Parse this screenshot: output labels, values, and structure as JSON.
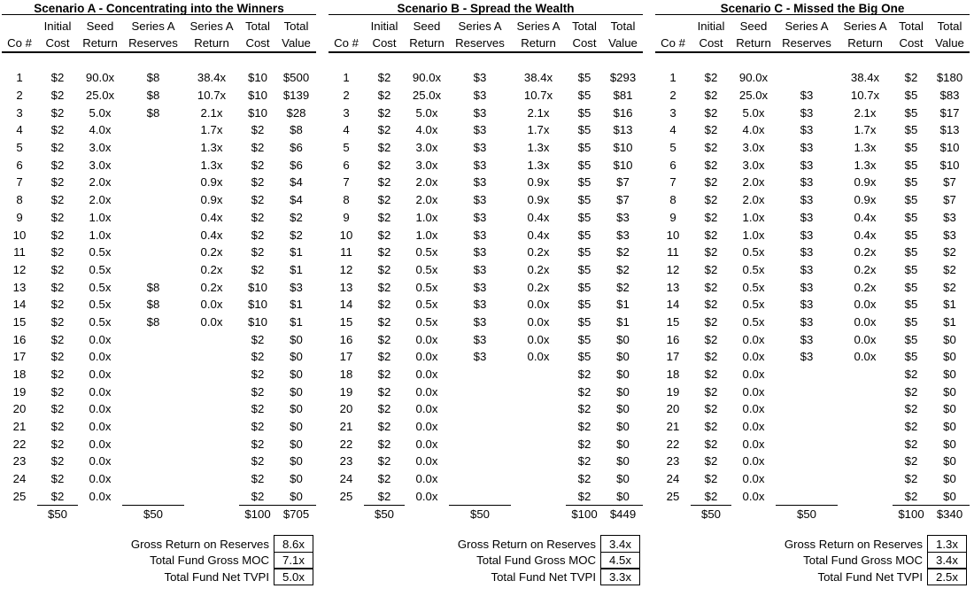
{
  "page": {
    "background_color": "#ffffff",
    "text_color": "#000000"
  },
  "columns": [
    [
      "",
      "Co #"
    ],
    [
      "Initial",
      "Cost"
    ],
    [
      "Seed",
      "Return"
    ],
    [
      "Series A",
      "Reserves"
    ],
    [
      "Series A",
      "Return"
    ],
    [
      "Total",
      "Cost"
    ],
    [
      "Total",
      "Value"
    ]
  ],
  "summary_labels": [
    "Gross Return on Reserves",
    "Total Fund Gross MOC",
    "Total Fund Net TVPI"
  ],
  "scenarios": [
    {
      "title": "Scenario A - Concentrating into the Winners",
      "rows": [
        [
          "1",
          "$2",
          "90.0x",
          "$8",
          "38.4x",
          "$10",
          "$500"
        ],
        [
          "2",
          "$2",
          "25.0x",
          "$8",
          "10.7x",
          "$10",
          "$139"
        ],
        [
          "3",
          "$2",
          "5.0x",
          "$8",
          "2.1x",
          "$10",
          "$28"
        ],
        [
          "4",
          "$2",
          "4.0x",
          "",
          "1.7x",
          "$2",
          "$8"
        ],
        [
          "5",
          "$2",
          "3.0x",
          "",
          "1.3x",
          "$2",
          "$6"
        ],
        [
          "6",
          "$2",
          "3.0x",
          "",
          "1.3x",
          "$2",
          "$6"
        ],
        [
          "7",
          "$2",
          "2.0x",
          "",
          "0.9x",
          "$2",
          "$4"
        ],
        [
          "8",
          "$2",
          "2.0x",
          "",
          "0.9x",
          "$2",
          "$4"
        ],
        [
          "9",
          "$2",
          "1.0x",
          "",
          "0.4x",
          "$2",
          "$2"
        ],
        [
          "10",
          "$2",
          "1.0x",
          "",
          "0.4x",
          "$2",
          "$2"
        ],
        [
          "11",
          "$2",
          "0.5x",
          "",
          "0.2x",
          "$2",
          "$1"
        ],
        [
          "12",
          "$2",
          "0.5x",
          "",
          "0.2x",
          "$2",
          "$1"
        ],
        [
          "13",
          "$2",
          "0.5x",
          "$8",
          "0.2x",
          "$10",
          "$3"
        ],
        [
          "14",
          "$2",
          "0.5x",
          "$8",
          "0.0x",
          "$10",
          "$1"
        ],
        [
          "15",
          "$2",
          "0.5x",
          "$8",
          "0.0x",
          "$10",
          "$1"
        ],
        [
          "16",
          "$2",
          "0.0x",
          "",
          "",
          "$2",
          "$0"
        ],
        [
          "17",
          "$2",
          "0.0x",
          "",
          "",
          "$2",
          "$0"
        ],
        [
          "18",
          "$2",
          "0.0x",
          "",
          "",
          "$2",
          "$0"
        ],
        [
          "19",
          "$2",
          "0.0x",
          "",
          "",
          "$2",
          "$0"
        ],
        [
          "20",
          "$2",
          "0.0x",
          "",
          "",
          "$2",
          "$0"
        ],
        [
          "21",
          "$2",
          "0.0x",
          "",
          "",
          "$2",
          "$0"
        ],
        [
          "22",
          "$2",
          "0.0x",
          "",
          "",
          "$2",
          "$0"
        ],
        [
          "23",
          "$2",
          "0.0x",
          "",
          "",
          "$2",
          "$0"
        ],
        [
          "24",
          "$2",
          "0.0x",
          "",
          "",
          "$2",
          "$0"
        ],
        [
          "25",
          "$2",
          "0.0x",
          "",
          "",
          "$2",
          "$0"
        ]
      ],
      "totals": [
        "",
        "$50",
        "",
        "$50",
        "",
        "$100",
        "$705"
      ],
      "summary_values": [
        "8.6x",
        "7.1x",
        "5.0x"
      ]
    },
    {
      "title": "Scenario B - Spread the Wealth",
      "rows": [
        [
          "1",
          "$2",
          "90.0x",
          "$3",
          "38.4x",
          "$5",
          "$293"
        ],
        [
          "2",
          "$2",
          "25.0x",
          "$3",
          "10.7x",
          "$5",
          "$81"
        ],
        [
          "3",
          "$2",
          "5.0x",
          "$3",
          "2.1x",
          "$5",
          "$16"
        ],
        [
          "4",
          "$2",
          "4.0x",
          "$3",
          "1.7x",
          "$5",
          "$13"
        ],
        [
          "5",
          "$2",
          "3.0x",
          "$3",
          "1.3x",
          "$5",
          "$10"
        ],
        [
          "6",
          "$2",
          "3.0x",
          "$3",
          "1.3x",
          "$5",
          "$10"
        ],
        [
          "7",
          "$2",
          "2.0x",
          "$3",
          "0.9x",
          "$5",
          "$7"
        ],
        [
          "8",
          "$2",
          "2.0x",
          "$3",
          "0.9x",
          "$5",
          "$7"
        ],
        [
          "9",
          "$2",
          "1.0x",
          "$3",
          "0.4x",
          "$5",
          "$3"
        ],
        [
          "10",
          "$2",
          "1.0x",
          "$3",
          "0.4x",
          "$5",
          "$3"
        ],
        [
          "11",
          "$2",
          "0.5x",
          "$3",
          "0.2x",
          "$5",
          "$2"
        ],
        [
          "12",
          "$2",
          "0.5x",
          "$3",
          "0.2x",
          "$5",
          "$2"
        ],
        [
          "13",
          "$2",
          "0.5x",
          "$3",
          "0.2x",
          "$5",
          "$2"
        ],
        [
          "14",
          "$2",
          "0.5x",
          "$3",
          "0.0x",
          "$5",
          "$1"
        ],
        [
          "15",
          "$2",
          "0.5x",
          "$3",
          "0.0x",
          "$5",
          "$1"
        ],
        [
          "16",
          "$2",
          "0.0x",
          "$3",
          "0.0x",
          "$5",
          "$0"
        ],
        [
          "17",
          "$2",
          "0.0x",
          "$3",
          "0.0x",
          "$5",
          "$0"
        ],
        [
          "18",
          "$2",
          "0.0x",
          "",
          "",
          "$2",
          "$0"
        ],
        [
          "19",
          "$2",
          "0.0x",
          "",
          "",
          "$2",
          "$0"
        ],
        [
          "20",
          "$2",
          "0.0x",
          "",
          "",
          "$2",
          "$0"
        ],
        [
          "21",
          "$2",
          "0.0x",
          "",
          "",
          "$2",
          "$0"
        ],
        [
          "22",
          "$2",
          "0.0x",
          "",
          "",
          "$2",
          "$0"
        ],
        [
          "23",
          "$2",
          "0.0x",
          "",
          "",
          "$2",
          "$0"
        ],
        [
          "24",
          "$2",
          "0.0x",
          "",
          "",
          "$2",
          "$0"
        ],
        [
          "25",
          "$2",
          "0.0x",
          "",
          "",
          "$2",
          "$0"
        ]
      ],
      "totals": [
        "",
        "$50",
        "",
        "$50",
        "",
        "$100",
        "$449"
      ],
      "summary_values": [
        "3.4x",
        "4.5x",
        "3.3x"
      ]
    },
    {
      "title": "Scenario C - Missed the Big One",
      "rows": [
        [
          "1",
          "$2",
          "90.0x",
          "",
          "38.4x",
          "$2",
          "$180"
        ],
        [
          "2",
          "$2",
          "25.0x",
          "$3",
          "10.7x",
          "$5",
          "$83"
        ],
        [
          "3",
          "$2",
          "5.0x",
          "$3",
          "2.1x",
          "$5",
          "$17"
        ],
        [
          "4",
          "$2",
          "4.0x",
          "$3",
          "1.7x",
          "$5",
          "$13"
        ],
        [
          "5",
          "$2",
          "3.0x",
          "$3",
          "1.3x",
          "$5",
          "$10"
        ],
        [
          "6",
          "$2",
          "3.0x",
          "$3",
          "1.3x",
          "$5",
          "$10"
        ],
        [
          "7",
          "$2",
          "2.0x",
          "$3",
          "0.9x",
          "$5",
          "$7"
        ],
        [
          "8",
          "$2",
          "2.0x",
          "$3",
          "0.9x",
          "$5",
          "$7"
        ],
        [
          "9",
          "$2",
          "1.0x",
          "$3",
          "0.4x",
          "$5",
          "$3"
        ],
        [
          "10",
          "$2",
          "1.0x",
          "$3",
          "0.4x",
          "$5",
          "$3"
        ],
        [
          "11",
          "$2",
          "0.5x",
          "$3",
          "0.2x",
          "$5",
          "$2"
        ],
        [
          "12",
          "$2",
          "0.5x",
          "$3",
          "0.2x",
          "$5",
          "$2"
        ],
        [
          "13",
          "$2",
          "0.5x",
          "$3",
          "0.2x",
          "$5",
          "$2"
        ],
        [
          "14",
          "$2",
          "0.5x",
          "$3",
          "0.0x",
          "$5",
          "$1"
        ],
        [
          "15",
          "$2",
          "0.5x",
          "$3",
          "0.0x",
          "$5",
          "$1"
        ],
        [
          "16",
          "$2",
          "0.0x",
          "$3",
          "0.0x",
          "$5",
          "$0"
        ],
        [
          "17",
          "$2",
          "0.0x",
          "$3",
          "0.0x",
          "$5",
          "$0"
        ],
        [
          "18",
          "$2",
          "0.0x",
          "",
          "",
          "$2",
          "$0"
        ],
        [
          "19",
          "$2",
          "0.0x",
          "",
          "",
          "$2",
          "$0"
        ],
        [
          "20",
          "$2",
          "0.0x",
          "",
          "",
          "$2",
          "$0"
        ],
        [
          "21",
          "$2",
          "0.0x",
          "",
          "",
          "$2",
          "$0"
        ],
        [
          "22",
          "$2",
          "0.0x",
          "",
          "",
          "$2",
          "$0"
        ],
        [
          "23",
          "$2",
          "0.0x",
          "",
          "",
          "$2",
          "$0"
        ],
        [
          "24",
          "$2",
          "0.0x",
          "",
          "",
          "$2",
          "$0"
        ],
        [
          "25",
          "$2",
          "0.0x",
          "",
          "",
          "$2",
          "$0"
        ]
      ],
      "totals": [
        "",
        "$50",
        "",
        "$50",
        "",
        "$100",
        "$340"
      ],
      "summary_values": [
        "1.3x",
        "3.4x",
        "2.5x"
      ]
    }
  ]
}
